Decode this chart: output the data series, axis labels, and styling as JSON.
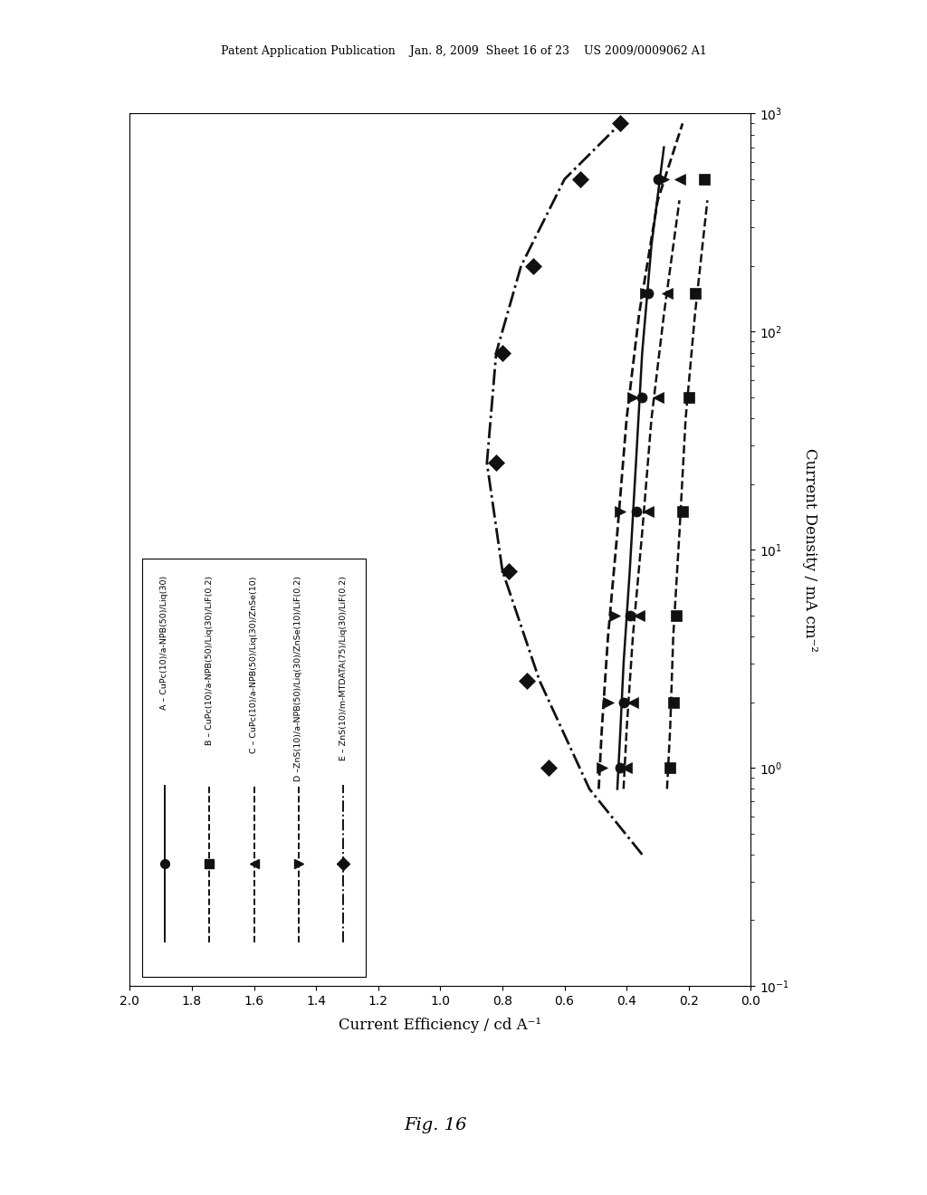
{
  "title_header": "Patent Application Publication    Jan. 8, 2009  Sheet 16 of 23    US 2009/0009062 A1",
  "xlabel": "Current Efficiency / cd A⁻¹",
  "ylabel": "Current Density / mA cm⁻²",
  "fig_label": "Fig. 16",
  "xlim": [
    2.0,
    0.0
  ],
  "ylim_log": [
    -1,
    3
  ],
  "series_A": {
    "x_scatter": [
      0.42,
      0.41,
      0.39,
      0.37,
      0.35,
      0.33,
      0.3
    ],
    "y_scatter": [
      1.0,
      2.0,
      5.0,
      15.0,
      50.0,
      150.0,
      500.0
    ],
    "x_line": [
      0.43,
      0.42,
      0.41,
      0.39,
      0.37,
      0.35,
      0.32,
      0.28
    ],
    "y_line": [
      0.8,
      1.5,
      3.0,
      8.0,
      25.0,
      80.0,
      250.0,
      700.0
    ],
    "color": "#111111",
    "marker": "o",
    "linestyle": "-",
    "linewidth": 1.8,
    "markersize": 8
  },
  "series_B": {
    "x_scatter": [
      0.26,
      0.25,
      0.24,
      0.22,
      0.2,
      0.18,
      0.15
    ],
    "y_scatter": [
      1.0,
      2.0,
      5.0,
      15.0,
      50.0,
      150.0,
      500.0
    ],
    "x_line": [
      0.27,
      0.26,
      0.25,
      0.23,
      0.21,
      0.18,
      0.14
    ],
    "y_line": [
      0.8,
      1.5,
      4.0,
      12.0,
      40.0,
      120.0,
      400.0
    ],
    "color": "#111111",
    "marker": "s",
    "linestyle": "--",
    "linewidth": 1.8,
    "markersize": 8
  },
  "series_C": {
    "x_scatter": [
      0.4,
      0.38,
      0.36,
      0.33,
      0.3,
      0.27,
      0.23
    ],
    "y_scatter": [
      1.0,
      2.0,
      5.0,
      15.0,
      50.0,
      150.0,
      500.0
    ],
    "x_line": [
      0.41,
      0.4,
      0.38,
      0.35,
      0.32,
      0.28,
      0.23
    ],
    "y_line": [
      0.8,
      1.5,
      4.0,
      12.0,
      40.0,
      120.0,
      400.0
    ],
    "color": "#111111",
    "marker": "<",
    "linestyle": "--",
    "linewidth": 1.8,
    "markersize": 9
  },
  "series_D": {
    "x_scatter": [
      0.48,
      0.46,
      0.44,
      0.42,
      0.38,
      0.34,
      0.28
    ],
    "y_scatter": [
      1.0,
      2.0,
      5.0,
      15.0,
      50.0,
      150.0,
      500.0
    ],
    "x_line": [
      0.49,
      0.48,
      0.46,
      0.43,
      0.4,
      0.36,
      0.3,
      0.22
    ],
    "y_line": [
      0.8,
      1.5,
      4.0,
      12.0,
      40.0,
      120.0,
      400.0,
      900.0
    ],
    "color": "#111111",
    "marker": ">",
    "linestyle": "--",
    "linewidth": 2.0,
    "markersize": 9
  },
  "series_E": {
    "x_scatter": [
      0.65,
      0.72,
      0.78,
      0.82,
      0.8,
      0.7,
      0.55,
      0.42
    ],
    "y_scatter": [
      1.0,
      2.5,
      8.0,
      25.0,
      80.0,
      200.0,
      500.0,
      900.0
    ],
    "x_line": [
      0.35,
      0.52,
      0.68,
      0.8,
      0.85,
      0.82,
      0.74,
      0.6,
      0.42
    ],
    "y_line": [
      0.4,
      0.8,
      2.5,
      8.0,
      25.0,
      80.0,
      200.0,
      500.0,
      900.0
    ],
    "color": "#111111",
    "marker": "D",
    "linestyle": "-.",
    "linewidth": 2.0,
    "markersize": 9
  },
  "legend_labels_short": [
    "A",
    "B",
    "C",
    "D",
    "E"
  ],
  "legend_labels_long": [
    " – CuPc(10)/a-NPB(50)/Liq(30)",
    " – CuPc(10)/a-NPB(50)/Liq(30)/LiF(0.2)",
    " – CuPc(10)/a-NPB(50)/Liq(30)/ZnSe(10)",
    " –ZnS(10)/a-NPB(50)/Liq(30)/ZnSe(10)/LiF(0.2)",
    " – ZnS(10)/m-MTDATA(75)/Liq(30)/LiF(0.2)"
  ],
  "legend_markers": [
    "o",
    "s",
    "<",
    ">",
    "D"
  ],
  "legend_linestyles": [
    "-",
    "--",
    "--",
    "--",
    "-."
  ],
  "background_color": "#ffffff"
}
